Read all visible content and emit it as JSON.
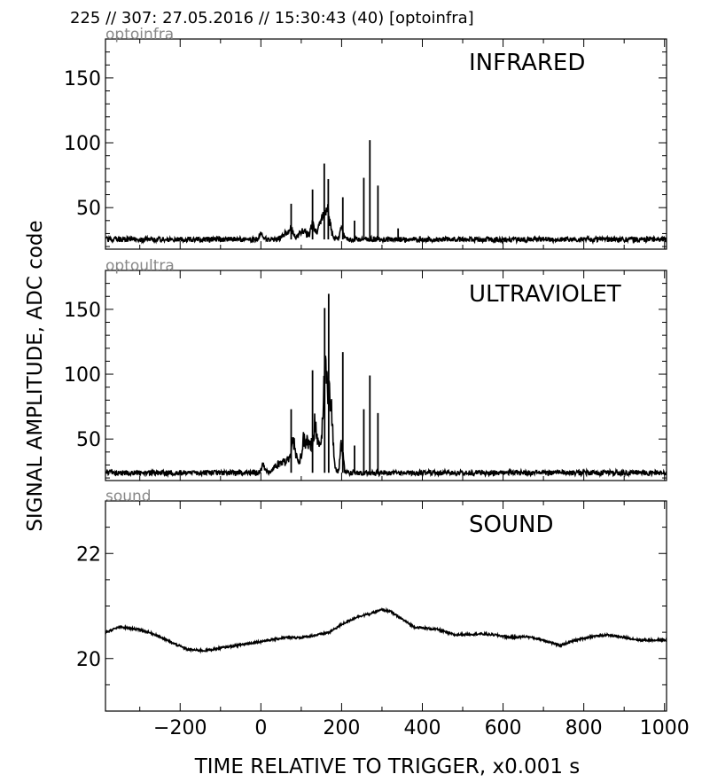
{
  "header": "225 // 307:   27.05.2016 // 15:30:43 (40)  [optoinfra]",
  "ylabel": "SIGNAL AMPLITUDE,  ADC code",
  "xlabel": "TIME RELATIVE TO TRIGGER,   x0.001 s",
  "line_color": "#000000",
  "subtitle_color": "#888888",
  "chart_data": [
    {
      "type": "line",
      "panel_label": "optoinfra",
      "annotation": "INFRARED",
      "xlim": [
        -385,
        1005
      ],
      "ylim": [
        18,
        180
      ],
      "yticks": [
        50,
        100,
        150
      ],
      "grid": false,
      "baseline": 25.5,
      "noise": 2,
      "features": [
        {
          "x": 0,
          "w": 6,
          "amp": 5
        },
        {
          "x": 62,
          "w": 12,
          "amp": 6
        },
        {
          "x": 75,
          "w": 6,
          "amp": 10
        },
        {
          "x": 105,
          "w": 15,
          "amp": 8
        },
        {
          "x": 128,
          "w": 6,
          "amp": 14
        },
        {
          "x": 150,
          "w": 12,
          "amp": 18
        },
        {
          "x": 165,
          "w": 10,
          "amp": 25
        },
        {
          "x": 200,
          "w": 5,
          "amp": 12
        }
      ],
      "spikes": [
        {
          "x": 75,
          "y": 53
        },
        {
          "x": 128,
          "y": 64
        },
        {
          "x": 157,
          "y": 84
        },
        {
          "x": 167,
          "y": 72
        },
        {
          "x": 203,
          "y": 58
        },
        {
          "x": 255,
          "y": 73
        },
        {
          "x": 270,
          "y": 102
        },
        {
          "x": 290,
          "y": 67
        },
        {
          "x": 232,
          "y": 40
        },
        {
          "x": 340,
          "y": 34
        }
      ]
    },
    {
      "type": "line",
      "panel_label": "optoultra",
      "annotation": "ULTRAVIOLET",
      "xlim": [
        -385,
        1005
      ],
      "ylim": [
        18,
        180
      ],
      "yticks": [
        50,
        100,
        150
      ],
      "grid": false,
      "baseline": 24,
      "noise": 2,
      "features": [
        {
          "x": 5,
          "w": 6,
          "amp": 7
        },
        {
          "x": 55,
          "w": 25,
          "amp": 10
        },
        {
          "x": 80,
          "w": 10,
          "amp": 25
        },
        {
          "x": 110,
          "w": 12,
          "amp": 35
        },
        {
          "x": 135,
          "w": 12,
          "amp": 45
        },
        {
          "x": 160,
          "w": 9,
          "amp": 90
        },
        {
          "x": 172,
          "w": 8,
          "amp": 60
        },
        {
          "x": 200,
          "w": 5,
          "amp": 30
        }
      ],
      "spikes": [
        {
          "x": 75,
          "y": 73
        },
        {
          "x": 128,
          "y": 103
        },
        {
          "x": 158,
          "y": 151
        },
        {
          "x": 168,
          "y": 162
        },
        {
          "x": 203,
          "y": 117
        },
        {
          "x": 255,
          "y": 73
        },
        {
          "x": 270,
          "y": 99
        },
        {
          "x": 290,
          "y": 70
        },
        {
          "x": 232,
          "y": 45
        }
      ]
    },
    {
      "type": "line",
      "panel_label": "sound",
      "annotation": "SOUND",
      "xlim": [
        -385,
        1005
      ],
      "ylim": [
        19.0,
        23.0
      ],
      "yticks": [
        20,
        22
      ],
      "xticks": [
        -200,
        0,
        200,
        400,
        600,
        800,
        1000
      ],
      "grid": false,
      "noise": 0.04,
      "points": [
        [
          -385,
          20.5
        ],
        [
          -350,
          20.6
        ],
        [
          -300,
          20.55
        ],
        [
          -260,
          20.45
        ],
        [
          -220,
          20.3
        ],
        [
          -180,
          20.17
        ],
        [
          -140,
          20.15
        ],
        [
          -100,
          20.2
        ],
        [
          -60,
          20.25
        ],
        [
          -20,
          20.3
        ],
        [
          20,
          20.35
        ],
        [
          60,
          20.4
        ],
        [
          100,
          20.4
        ],
        [
          140,
          20.45
        ],
        [
          170,
          20.5
        ],
        [
          200,
          20.65
        ],
        [
          240,
          20.8
        ],
        [
          270,
          20.85
        ],
        [
          300,
          20.93
        ],
        [
          320,
          20.9
        ],
        [
          350,
          20.75
        ],
        [
          380,
          20.6
        ],
        [
          440,
          20.55
        ],
        [
          480,
          20.45
        ],
        [
          540,
          20.47
        ],
        [
          580,
          20.45
        ],
        [
          620,
          20.4
        ],
        [
          660,
          20.42
        ],
        [
          700,
          20.35
        ],
        [
          740,
          20.25
        ],
        [
          780,
          20.35
        ],
        [
          820,
          20.42
        ],
        [
          860,
          20.45
        ],
        [
          900,
          20.4
        ],
        [
          940,
          20.35
        ],
        [
          990,
          20.35
        ]
      ]
    }
  ]
}
